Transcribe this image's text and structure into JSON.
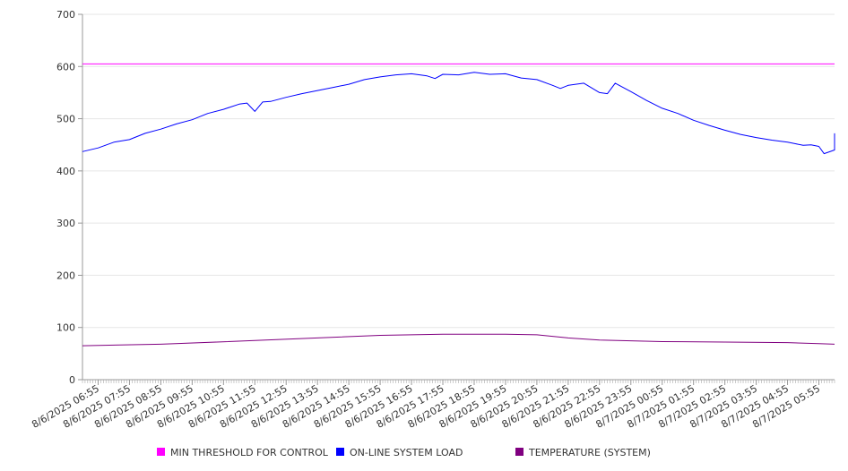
{
  "chart_data": {
    "type": "line",
    "ylim": [
      0,
      700
    ],
    "y_ticks": [
      0,
      100,
      200,
      300,
      400,
      500,
      600,
      700
    ],
    "x_tick_labels": [
      "8/6/2025 06:55",
      "8/6/2025 07:55",
      "8/6/2025 08:55",
      "8/6/2025 09:55",
      "8/6/2025 10:55",
      "8/6/2025 11:55",
      "8/6/2025 12:55",
      "8/6/2025 13:55",
      "8/6/2025 14:55",
      "8/6/2025 15:55",
      "8/6/2025 16:55",
      "8/6/2025 17:55",
      "8/6/2025 18:55",
      "8/6/2025 19:55",
      "8/6/2025 20:55",
      "8/6/2025 21:55",
      "8/6/2025 22:55",
      "8/6/2025 23:55",
      "8/7/2025 00:55",
      "8/7/2025 01:55",
      "8/7/2025 02:55",
      "8/7/2025 03:55",
      "8/7/2025 04:55",
      "8/7/2025 05:55"
    ],
    "x_range": [
      "8/6/2025 06:25",
      "8/7/2025 06:25"
    ],
    "grid": true,
    "legend_position": "bottom",
    "series": [
      {
        "name": "MIN THRESHOLD FOR CONTROL",
        "color": "#ff00ff",
        "points": [
          [
            "8/6/2025 06:25",
            605
          ],
          [
            "8/7/2025 06:25",
            605
          ]
        ]
      },
      {
        "name": "ON-LINE SYSTEM LOAD",
        "color": "#0000ff",
        "points": [
          [
            "8/6/2025 06:25",
            437
          ],
          [
            "8/6/2025 06:55",
            444
          ],
          [
            "8/6/2025 07:25",
            455
          ],
          [
            "8/6/2025 07:55",
            460
          ],
          [
            "8/6/2025 08:25",
            472
          ],
          [
            "8/6/2025 08:55",
            480
          ],
          [
            "8/6/2025 09:25",
            490
          ],
          [
            "8/6/2025 09:55",
            498
          ],
          [
            "8/6/2025 10:25",
            510
          ],
          [
            "8/6/2025 10:55",
            518
          ],
          [
            "8/6/2025 11:25",
            528
          ],
          [
            "8/6/2025 11:40",
            530
          ],
          [
            "8/6/2025 11:55",
            514
          ],
          [
            "8/6/2025 12:10",
            532
          ],
          [
            "8/6/2025 12:25",
            533
          ],
          [
            "8/6/2025 12:55",
            541
          ],
          [
            "8/6/2025 13:25",
            548
          ],
          [
            "8/6/2025 13:55",
            554
          ],
          [
            "8/6/2025 14:25",
            560
          ],
          [
            "8/6/2025 14:55",
            566
          ],
          [
            "8/6/2025 15:25",
            575
          ],
          [
            "8/6/2025 15:55",
            580
          ],
          [
            "8/6/2025 16:25",
            584
          ],
          [
            "8/6/2025 16:55",
            586
          ],
          [
            "8/6/2025 17:25",
            582
          ],
          [
            "8/6/2025 17:40",
            577
          ],
          [
            "8/6/2025 17:55",
            585
          ],
          [
            "8/6/2025 18:25",
            584
          ],
          [
            "8/6/2025 18:55",
            589
          ],
          [
            "8/6/2025 19:25",
            585
          ],
          [
            "8/6/2025 19:55",
            586
          ],
          [
            "8/6/2025 20:25",
            578
          ],
          [
            "8/6/2025 20:55",
            575
          ],
          [
            "8/6/2025 21:25",
            564
          ],
          [
            "8/6/2025 21:40",
            558
          ],
          [
            "8/6/2025 21:55",
            564
          ],
          [
            "8/6/2025 22:25",
            568
          ],
          [
            "8/6/2025 22:55",
            550
          ],
          [
            "8/6/2025 23:10",
            548
          ],
          [
            "8/6/2025 23:25",
            568
          ],
          [
            "8/6/2025 23:55",
            552
          ],
          [
            "8/7/2025 00:25",
            535
          ],
          [
            "8/7/2025 00:55",
            520
          ],
          [
            "8/7/2025 01:25",
            510
          ],
          [
            "8/7/2025 01:55",
            497
          ],
          [
            "8/7/2025 02:25",
            487
          ],
          [
            "8/7/2025 02:55",
            478
          ],
          [
            "8/7/2025 03:25",
            470
          ],
          [
            "8/7/2025 03:55",
            464
          ],
          [
            "8/7/2025 04:25",
            459
          ],
          [
            "8/7/2025 04:55",
            455
          ],
          [
            "8/7/2025 05:10",
            452
          ],
          [
            "8/7/2025 05:25",
            449
          ],
          [
            "8/7/2025 05:40",
            450
          ],
          [
            "8/7/2025 05:55",
            447
          ],
          [
            "8/7/2025 06:05",
            433
          ],
          [
            "8/7/2025 06:25",
            440
          ],
          [
            "8/7/2025 06:25",
            472
          ]
        ]
      },
      {
        "name": "TEMPERATURE (SYSTEM)",
        "color": "#800080",
        "points": [
          [
            "8/6/2025 06:25",
            65
          ],
          [
            "8/6/2025 08:55",
            68
          ],
          [
            "8/6/2025 11:55",
            75
          ],
          [
            "8/6/2025 13:55",
            80
          ],
          [
            "8/6/2025 15:55",
            85
          ],
          [
            "8/6/2025 17:55",
            87
          ],
          [
            "8/6/2025 19:55",
            87
          ],
          [
            "8/6/2025 20:55",
            86
          ],
          [
            "8/6/2025 21:55",
            80
          ],
          [
            "8/6/2025 22:55",
            76
          ],
          [
            "8/7/2025 00:55",
            73
          ],
          [
            "8/7/2025 02:55",
            72
          ],
          [
            "8/7/2025 04:55",
            71
          ],
          [
            "8/7/2025 05:55",
            69
          ],
          [
            "8/7/2025 06:25",
            68
          ]
        ]
      }
    ]
  }
}
